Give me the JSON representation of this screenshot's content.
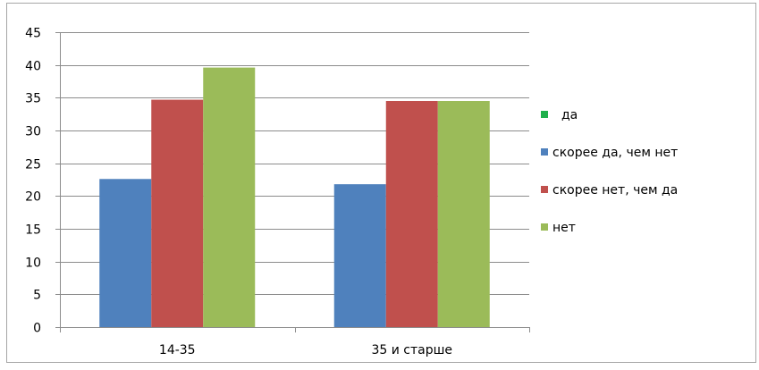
{
  "chart_data": {
    "type": "bar",
    "categories": [
      "14-35",
      "35 и старше"
    ],
    "series": [
      {
        "name": "да",
        "color": "#1fb04b",
        "values": [
          0,
          0
        ]
      },
      {
        "name": "скорее да, чем нет",
        "color": "#4f81bd",
        "values": [
          22.6,
          21.8
        ]
      },
      {
        "name": "скорее нет, чем да",
        "color": "#c0504d",
        "values": [
          34.7,
          34.5
        ]
      },
      {
        "name": "нет",
        "color": "#9bbb59",
        "values": [
          39.6,
          34.5
        ]
      }
    ],
    "ylim": [
      0,
      45
    ],
    "yticks": [
      0,
      5,
      10,
      15,
      20,
      25,
      30,
      35,
      40,
      45
    ],
    "title": "",
    "xlabel": "",
    "ylabel": "",
    "grid": true,
    "legend_position": "right"
  }
}
